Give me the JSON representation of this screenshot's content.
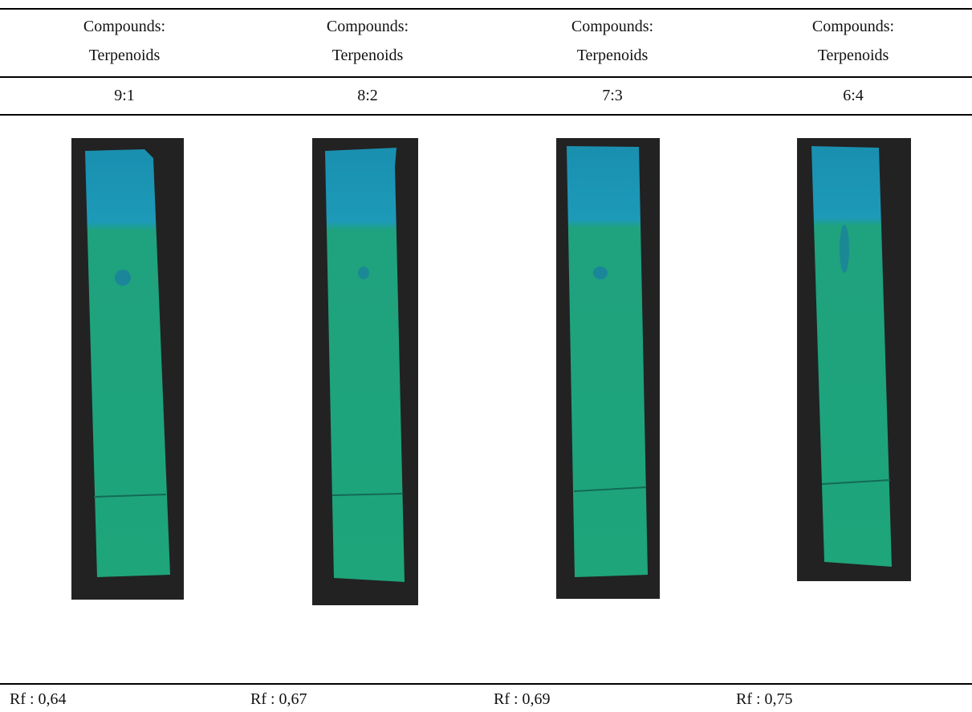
{
  "table": {
    "header": [
      [
        "Compounds:",
        "Terpenoids"
      ],
      [
        "Compounds:",
        "Terpenoids"
      ],
      [
        "Compounds:",
        "Terpenoids"
      ],
      [
        "Compounds:",
        "Terpenoids"
      ]
    ],
    "ratios": [
      "9:1",
      "8:2",
      "7:3",
      "6:4"
    ],
    "rf": [
      "Rf : 0,64",
      "Rf : 0,67",
      "Rf : 0,69",
      "Rf : 0,75"
    ]
  }
}
